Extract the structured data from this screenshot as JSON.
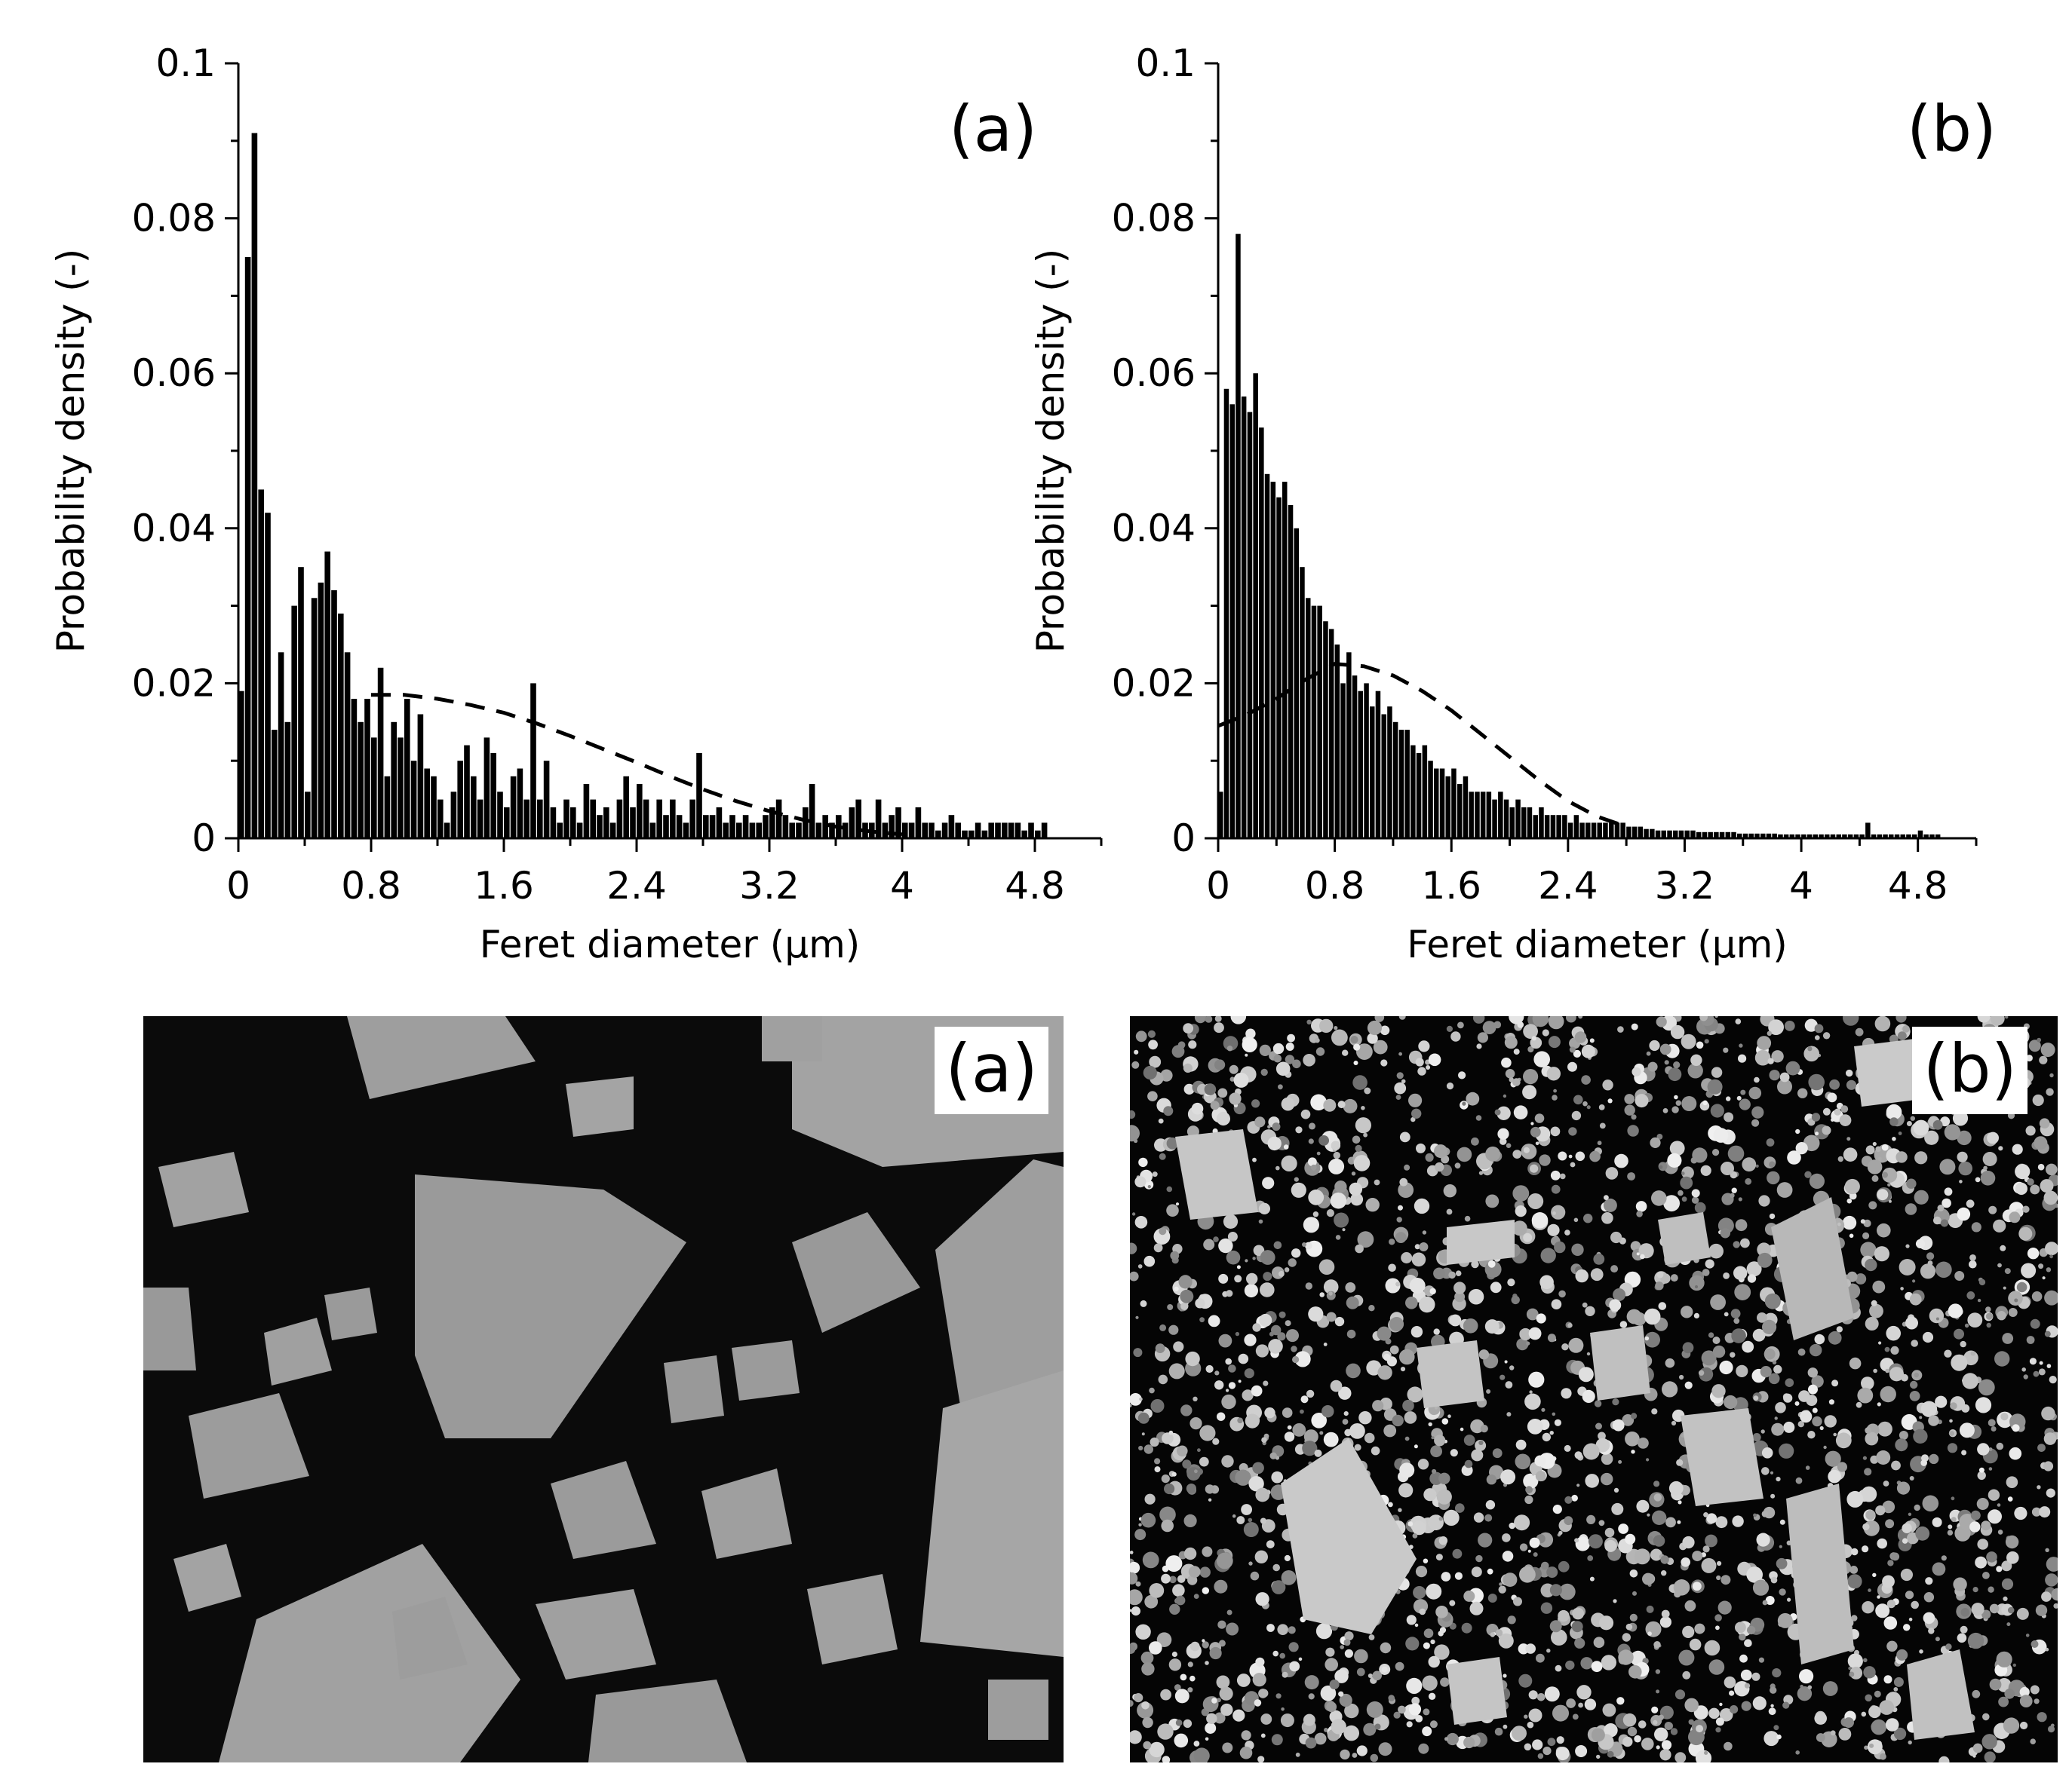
{
  "chart_data": [
    {
      "type": "bar",
      "panel_label": "(a)",
      "xlabel": "Feret diameter (µm)",
      "ylabel": "Probability density (-)",
      "xlim": [
        0,
        5.2
      ],
      "ylim": [
        0,
        0.1
      ],
      "x_ticks": [
        "0",
        "0.8",
        "1.6",
        "2.4",
        "3.2",
        "4",
        "4.8"
      ],
      "y_ticks": [
        "0",
        "0.02",
        "0.04",
        "0.06",
        "0.08",
        "0.1"
      ],
      "bin_width": 0.04,
      "bin_start": 0,
      "values": [
        0.019,
        0.075,
        0.091,
        0.045,
        0.042,
        0.014,
        0.024,
        0.015,
        0.03,
        0.035,
        0.006,
        0.031,
        0.033,
        0.037,
        0.032,
        0.029,
        0.024,
        0.018,
        0.015,
        0.018,
        0.013,
        0.022,
        0.008,
        0.015,
        0.013,
        0.018,
        0.01,
        0.016,
        0.009,
        0.008,
        0.005,
        0.002,
        0.006,
        0.01,
        0.012,
        0.008,
        0.005,
        0.013,
        0.011,
        0.006,
        0.004,
        0.008,
        0.009,
        0.005,
        0.02,
        0.005,
        0.01,
        0.004,
        0.002,
        0.005,
        0.004,
        0.002,
        0.007,
        0.005,
        0.003,
        0.004,
        0.002,
        0.005,
        0.008,
        0.004,
        0.007,
        0.005,
        0.002,
        0.005,
        0.003,
        0.005,
        0.003,
        0.002,
        0.005,
        0.011,
        0.003,
        0.003,
        0.004,
        0.002,
        0.003,
        0.002,
        0.003,
        0.002,
        0.002,
        0.003,
        0.004,
        0.005,
        0.003,
        0.002,
        0.002,
        0.004,
        0.007,
        0.002,
        0.003,
        0.002,
        0.003,
        0.002,
        0.004,
        0.005,
        0.002,
        0.002,
        0.005,
        0.002,
        0.003,
        0.004,
        0.002,
        0.002,
        0.004,
        0.002,
        0.002,
        0.001,
        0.002,
        0.003,
        0.002,
        0.001,
        0.001,
        0.002,
        0.001,
        0.002,
        0.002,
        0.002,
        0.002,
        0.002,
        0.001,
        0.002,
        0.001,
        0.002
      ],
      "fit": {
        "style": "dashed",
        "x": [
          0.8,
          1.0,
          1.2,
          1.4,
          1.6,
          1.8,
          2.0,
          2.2,
          2.4,
          2.6,
          2.8,
          3.0,
          3.2,
          3.4,
          3.6,
          3.8,
          4.0
        ],
        "y": [
          0.0185,
          0.0185,
          0.018,
          0.0172,
          0.0162,
          0.0148,
          0.0132,
          0.0115,
          0.0098,
          0.008,
          0.0063,
          0.0048,
          0.0035,
          0.0024,
          0.0015,
          0.0009,
          0.0005
        ]
      },
      "grid": false
    },
    {
      "type": "bar",
      "panel_label": "(b)",
      "xlabel": "Feret diameter (µm)",
      "ylabel": "Probability density (-)",
      "xlim": [
        0,
        5.2
      ],
      "ylim": [
        0,
        0.1
      ],
      "x_ticks": [
        "0",
        "0.8",
        "1.6",
        "2.4",
        "3.2",
        "4",
        "4.8"
      ],
      "y_ticks": [
        "0",
        "0.02",
        "0.04",
        "0.06",
        "0.08",
        "0.1"
      ],
      "bin_width": 0.04,
      "bin_start": 0,
      "values": [
        0.006,
        0.058,
        0.056,
        0.078,
        0.057,
        0.055,
        0.06,
        0.053,
        0.047,
        0.046,
        0.044,
        0.046,
        0.043,
        0.04,
        0.035,
        0.031,
        0.03,
        0.03,
        0.028,
        0.027,
        0.025,
        0.02,
        0.024,
        0.021,
        0.019,
        0.02,
        0.017,
        0.019,
        0.016,
        0.017,
        0.015,
        0.014,
        0.014,
        0.012,
        0.011,
        0.012,
        0.01,
        0.009,
        0.009,
        0.008,
        0.009,
        0.007,
        0.008,
        0.006,
        0.006,
        0.006,
        0.006,
        0.005,
        0.006,
        0.005,
        0.004,
        0.005,
        0.004,
        0.004,
        0.003,
        0.004,
        0.003,
        0.003,
        0.003,
        0.003,
        0.002,
        0.003,
        0.002,
        0.002,
        0.002,
        0.002,
        0.002,
        0.002,
        0.002,
        0.002,
        0.0015,
        0.0015,
        0.0015,
        0.0012,
        0.0012,
        0.001,
        0.001,
        0.001,
        0.001,
        0.001,
        0.001,
        0.001,
        0.0008,
        0.0008,
        0.0008,
        0.0008,
        0.0008,
        0.0008,
        0.0008,
        0.0006,
        0.0006,
        0.0006,
        0.0006,
        0.0006,
        0.0006,
        0.0006,
        0.0005,
        0.0005,
        0.0005,
        0.0005,
        0.0005,
        0.0005,
        0.0005,
        0.0005,
        0.0005,
        0.0005,
        0.0005,
        0.0005,
        0.0005,
        0.0005,
        0.0005,
        0.002,
        0.0005,
        0.0005,
        0.0005,
        0.0005,
        0.0005,
        0.0005,
        0.0005,
        0.0005,
        0.001,
        0.0005,
        0.0005,
        0.0005
      ],
      "fit": {
        "style": "dashed",
        "x": [
          0.0,
          0.2,
          0.4,
          0.6,
          0.8,
          1.0,
          1.2,
          1.4,
          1.6,
          1.8,
          2.0,
          2.2,
          2.4,
          2.6,
          2.8
        ],
        "y": [
          0.0145,
          0.016,
          0.018,
          0.0205,
          0.0225,
          0.0222,
          0.021,
          0.019,
          0.0165,
          0.0135,
          0.0105,
          0.0075,
          0.0048,
          0.0028,
          0.0015
        ]
      },
      "grid": false
    }
  ],
  "images": [
    {
      "label": "(a)",
      "kind": "SEM micrograph"
    },
    {
      "label": "(b)",
      "kind": "SEM micrograph"
    }
  ]
}
